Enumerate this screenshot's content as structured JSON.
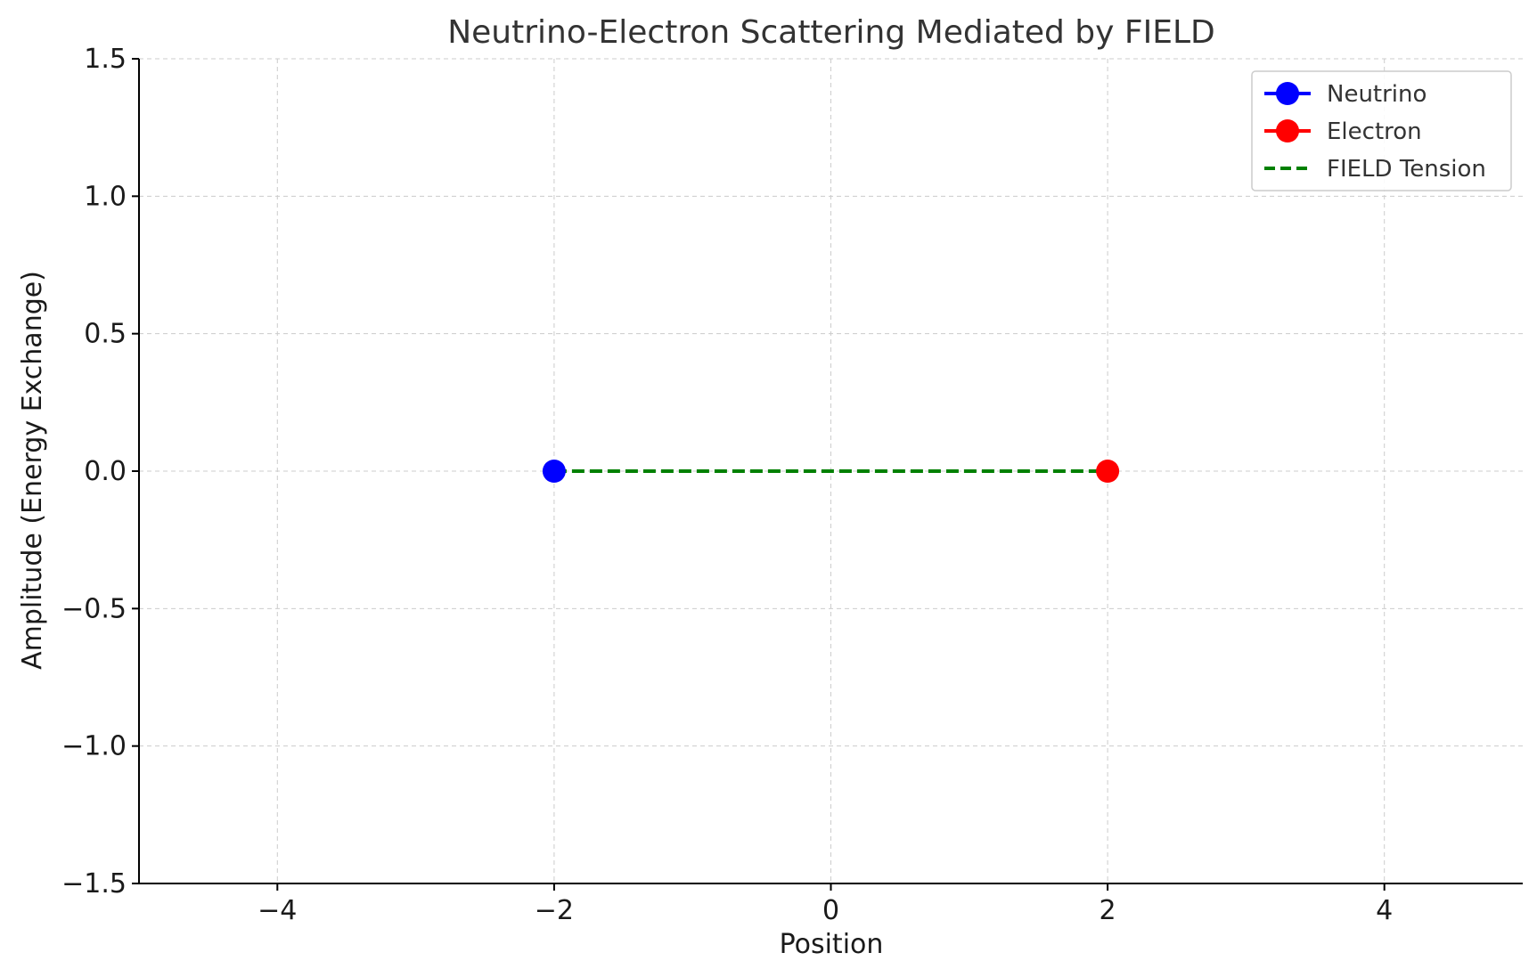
{
  "chart_data": {
    "type": "scatter",
    "title": "Neutrino-Electron Scattering Mediated by FIELD",
    "xlabel": "Position",
    "ylabel": "Amplitude (Energy Exchange)",
    "xlim": [
      -5,
      5
    ],
    "ylim": [
      -1.5,
      1.5
    ],
    "xticks": [
      -4,
      -2,
      0,
      2,
      4
    ],
    "xtick_labels": [
      "−4",
      "−2",
      "0",
      "2",
      "4"
    ],
    "yticks": [
      -1.5,
      -1.0,
      -0.5,
      0.0,
      0.5,
      1.0,
      1.5
    ],
    "ytick_labels": [
      "−1.5",
      "−1.0",
      "−0.5",
      "0.0",
      "0.5",
      "1.0",
      "1.5"
    ],
    "grid": true,
    "legend_position": "top-right",
    "series": [
      {
        "name": "Neutrino",
        "kind": "marker",
        "color": "#0000ff",
        "points": [
          {
            "x": -2,
            "y": 0
          }
        ]
      },
      {
        "name": "Electron",
        "kind": "marker",
        "color": "#ff0000",
        "points": [
          {
            "x": 2,
            "y": 0
          }
        ]
      },
      {
        "name": "FIELD Tension",
        "kind": "dashed-line",
        "color": "#008000",
        "points": [
          {
            "x": -2,
            "y": 0
          },
          {
            "x": 2,
            "y": 0
          }
        ]
      }
    ]
  }
}
